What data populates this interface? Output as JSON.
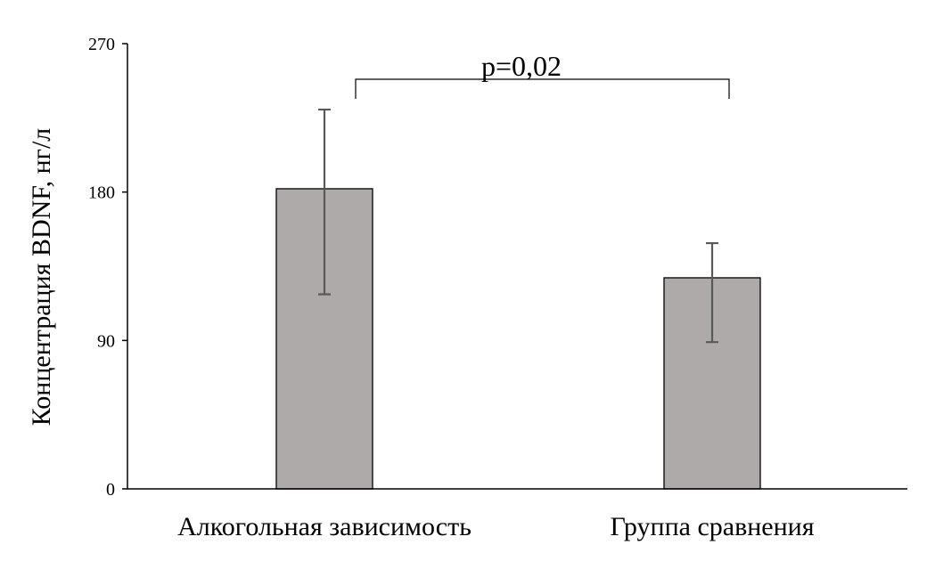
{
  "chart_data": {
    "type": "bar",
    "title": "",
    "xlabel": "",
    "ylabel": "Концентрация BDNF, нг/л",
    "categories": [
      "Алкогольная зависимость",
      "Группа сравнения"
    ],
    "values": [
      182,
      128
    ],
    "error_bars": [
      {
        "low": 118,
        "high": 230
      },
      {
        "low": 89,
        "high": 149
      }
    ],
    "ylim": [
      0,
      270
    ],
    "yticks": [
      "0",
      "90",
      "180",
      "270"
    ],
    "grid": false,
    "legend": "none",
    "bar_color": "#aeaaaa",
    "bar_edge_color": "#000000",
    "error_color": "#595959",
    "annotation": {
      "text": "p=0,02",
      "between": [
        "Алкогольная зависимость",
        "Группа сравнения"
      ]
    }
  }
}
